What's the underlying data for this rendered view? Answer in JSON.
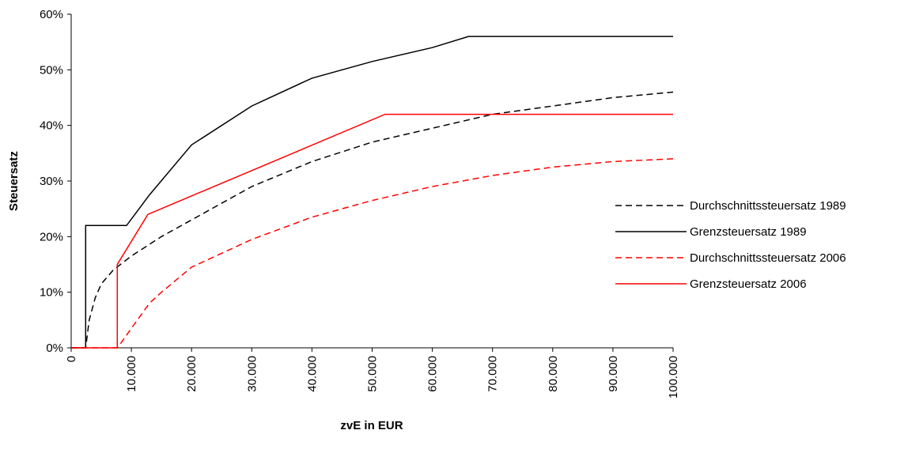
{
  "chart_data": {
    "type": "line",
    "x_label": "zvE in EUR",
    "y_label": "Steuersatz",
    "xlim": [
      0,
      100000
    ],
    "ylim": [
      0,
      60
    ],
    "xticks": [
      0,
      {
        "value": 10000,
        "label": "10.000"
      },
      {
        "value": 20000,
        "label": "20.000"
      },
      {
        "value": 30000,
        "label": "30.000"
      },
      {
        "value": 40000,
        "label": "40.000"
      },
      {
        "value": 50000,
        "label": "50.000"
      },
      {
        "value": 60000,
        "label": "60.000"
      },
      {
        "value": 70000,
        "label": "70.000"
      },
      {
        "value": 80000,
        "label": "80.000"
      },
      {
        "value": 90000,
        "label": "90.000"
      },
      {
        "value": 100000,
        "label": "100.000"
      }
    ],
    "yticks": [
      {
        "value": 0,
        "label": "0%"
      },
      {
        "value": 10,
        "label": "10%"
      },
      {
        "value": 20,
        "label": "20%"
      },
      {
        "value": 30,
        "label": "30%"
      },
      {
        "value": 40,
        "label": "40%"
      },
      {
        "value": 50,
        "label": "50%"
      },
      {
        "value": 60,
        "label": "60%"
      }
    ],
    "grid": false,
    "legend": "right",
    "series": [
      {
        "name": "Durchschnittssteuersatz 1989",
        "color": "#000000",
        "dash": true,
        "x": [
          0,
          2400,
          3000,
          4000,
          5000,
          7000,
          10000,
          15000,
          20000,
          30000,
          40000,
          50000,
          60000,
          70000,
          80000,
          90000,
          100000
        ],
        "values": [
          0,
          0,
          5,
          9,
          11.5,
          14,
          16.5,
          20,
          23,
          29,
          33.5,
          37,
          39.5,
          42,
          43.5,
          45,
          46
        ]
      },
      {
        "name": "Grenzsteuersatz 1989",
        "color": "#000000",
        "dash": false,
        "x": [
          0,
          2400,
          2400,
          9200,
          13000,
          20000,
          30000,
          40000,
          50000,
          60000,
          66000,
          100000
        ],
        "values": [
          0,
          0,
          22,
          22,
          27.5,
          36.5,
          43.5,
          48.5,
          51.5,
          54,
          56,
          56
        ]
      },
      {
        "name": "Durchschnittssteuersatz 2006",
        "color": "#ff0000",
        "dash": true,
        "x": [
          0,
          7700,
          10000,
          13000,
          15000,
          20000,
          30000,
          40000,
          50000,
          60000,
          70000,
          80000,
          90000,
          100000
        ],
        "values": [
          0,
          0,
          3.5,
          8,
          10,
          14.5,
          19.5,
          23.5,
          26.5,
          29,
          31,
          32.5,
          33.5,
          34
        ]
      },
      {
        "name": "Grenzsteuersatz 2006",
        "color": "#ff0000",
        "dash": false,
        "x": [
          0,
          7664,
          7664,
          12740,
          52152,
          100000
        ],
        "values": [
          0,
          0,
          15,
          24,
          42,
          42
        ]
      }
    ]
  }
}
